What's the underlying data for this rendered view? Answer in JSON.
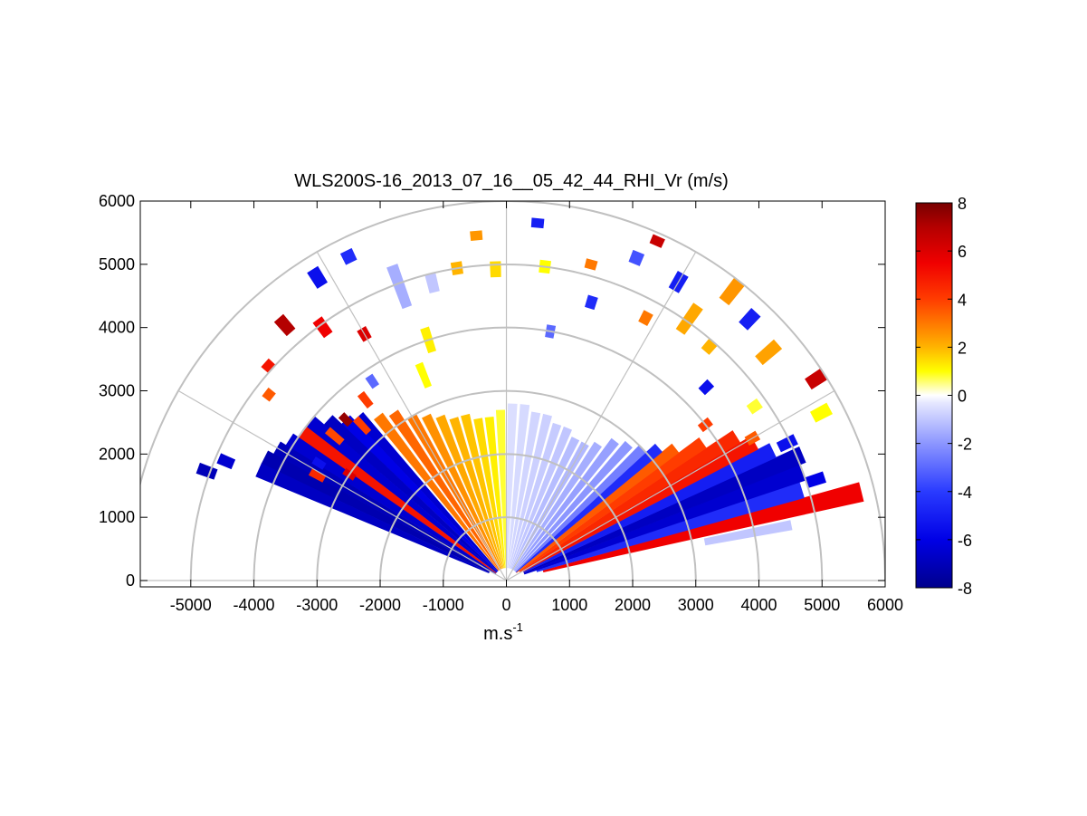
{
  "chart_data": {
    "type": "heatmap",
    "subtype": "polar-rhi-sector",
    "title": "WLS200S-16_2013_07_16__05_42_44_RHI_Vr (m/s)",
    "xlabel": "m.s",
    "xlabel_superscript": "-1",
    "ylabel": "",
    "xlim": [
      -5800,
      6000
    ],
    "ylim": [
      -100,
      6000
    ],
    "xticks": [
      "-5000",
      "-4000",
      "-3000",
      "-2000",
      "-1000",
      "0",
      "1000",
      "2000",
      "3000",
      "4000",
      "5000",
      "6000"
    ],
    "yticks": [
      "0",
      "1000",
      "2000",
      "3000",
      "4000",
      "5000",
      "6000"
    ],
    "grid": "polar",
    "range_rings": [
      1000,
      2000,
      3000,
      4000,
      5000,
      6000
    ],
    "spokes_deg": [
      30,
      60,
      90,
      120,
      150
    ],
    "colorbar": {
      "placement": "right",
      "min": -8,
      "max": 8,
      "ticks": [
        "8",
        "6",
        "4",
        "2",
        "0",
        "-2",
        "-4",
        "-6",
        "-8"
      ],
      "stops": [
        {
          "v": -8,
          "color": "#00008c"
        },
        {
          "v": -6,
          "color": "#0000e6"
        },
        {
          "v": -4,
          "color": "#2a3bff"
        },
        {
          "v": -2,
          "color": "#8c96ff"
        },
        {
          "v": -0.3,
          "color": "#e6e8ff"
        },
        {
          "v": 0,
          "color": "#ffffff"
        },
        {
          "v": 0.3,
          "color": "#ffffb4"
        },
        {
          "v": 1,
          "color": "#ffff00"
        },
        {
          "v": 2,
          "color": "#ffb400"
        },
        {
          "v": 3,
          "color": "#ff7800"
        },
        {
          "v": 4,
          "color": "#ff3c00"
        },
        {
          "v": 5.5,
          "color": "#f00000"
        },
        {
          "v": 7,
          "color": "#b40000"
        },
        {
          "v": 8,
          "color": "#780000"
        }
      ]
    },
    "beams": [
      {
        "az": 14,
        "r0": 600,
        "r1": 5800,
        "vr": 5.5
      },
      {
        "az": 17,
        "r0": 500,
        "r1": 4900,
        "vr": -4.5
      },
      {
        "az": 20,
        "r0": 300,
        "r1": 5000,
        "vr": -6.5
      },
      {
        "az": 23,
        "r0": 300,
        "r1": 5100,
        "vr": -6.8
      },
      {
        "az": 26,
        "r0": 300,
        "r1": 4700,
        "vr": -5.0
      },
      {
        "az": 29,
        "r0": 300,
        "r1": 4500,
        "vr": 5.0
      },
      {
        "az": 32,
        "r0": 250,
        "r1": 4300,
        "vr": 4.5
      },
      {
        "az": 35,
        "r0": 250,
        "r1": 3800,
        "vr": 4.0
      },
      {
        "az": 38,
        "r0": 200,
        "r1": 3400,
        "vr": 3.5
      },
      {
        "az": 41,
        "r0": 200,
        "r1": 3200,
        "vr": -4.5
      },
      {
        "az": 44,
        "r0": 200,
        "r1": 3000,
        "vr": -2.5
      },
      {
        "az": 48,
        "r0": 200,
        "r1": 2900,
        "vr": -2.0
      },
      {
        "az": 52,
        "r0": 200,
        "r1": 2800,
        "vr": -1.8
      },
      {
        "az": 56,
        "r0": 200,
        "r1": 2600,
        "vr": -1.5
      },
      {
        "az": 60,
        "r0": 200,
        "r1": 2500,
        "vr": -1.3
      },
      {
        "az": 64,
        "r0": 200,
        "r1": 2500,
        "vr": -1.2
      },
      {
        "az": 68,
        "r0": 200,
        "r1": 2600,
        "vr": -1.0
      },
      {
        "az": 72,
        "r0": 200,
        "r1": 2600,
        "vr": -0.9
      },
      {
        "az": 76,
        "r0": 200,
        "r1": 2700,
        "vr": -0.8
      },
      {
        "az": 80,
        "r0": 200,
        "r1": 2700,
        "vr": -0.7
      },
      {
        "az": 84,
        "r0": 200,
        "r1": 2800,
        "vr": -0.6
      },
      {
        "az": 88,
        "r0": 200,
        "r1": 2800,
        "vr": -0.5
      },
      {
        "az": 92,
        "r0": 200,
        "r1": 2700,
        "vr": 0.8
      },
      {
        "az": 96,
        "r0": 200,
        "r1": 2600,
        "vr": 1.2
      },
      {
        "az": 100,
        "r0": 200,
        "r1": 2600,
        "vr": 1.5
      },
      {
        "az": 104,
        "r0": 200,
        "r1": 2700,
        "vr": 1.8
      },
      {
        "az": 108,
        "r0": 200,
        "r1": 2700,
        "vr": 2.0
      },
      {
        "az": 112,
        "r0": 200,
        "r1": 2800,
        "vr": 2.2
      },
      {
        "az": 116,
        "r0": 200,
        "r1": 2900,
        "vr": 2.6
      },
      {
        "az": 120,
        "r0": 200,
        "r1": 3000,
        "vr": 3.0
      },
      {
        "az": 124,
        "r0": 200,
        "r1": 3200,
        "vr": 3.3
      },
      {
        "az": 128,
        "r0": 200,
        "r1": 3300,
        "vr": 3.0
      },
      {
        "az": 132,
        "r0": 200,
        "r1": 3500,
        "vr": -6.5
      },
      {
        "az": 135,
        "r0": 200,
        "r1": 3600,
        "vr": -6.0
      },
      {
        "az": 138,
        "r0": 200,
        "r1": 3800,
        "vr": -6.8
      },
      {
        "az": 141,
        "r0": 200,
        "r1": 4000,
        "vr": -6.5
      },
      {
        "az": 144,
        "r0": 200,
        "r1": 4000,
        "vr": 5.0
      },
      {
        "az": 147,
        "r0": 200,
        "r1": 4100,
        "vr": -6.5
      },
      {
        "az": 150,
        "r0": 200,
        "r1": 4200,
        "vr": -7.0
      },
      {
        "az": 153,
        "r0": 300,
        "r1": 4300,
        "vr": -7.2
      },
      {
        "az": 156,
        "r0": 300,
        "r1": 4300,
        "vr": -6.8
      }
    ],
    "patches": [
      {
        "az": 160,
        "r0": 4900,
        "r1": 5200,
        "vr": -7.0
      },
      {
        "az": 157,
        "r0": 4700,
        "r1": 4950,
        "vr": -6.5
      },
      {
        "az": 151,
        "r0": 3300,
        "r1": 3550,
        "vr": 4.5
      },
      {
        "az": 148,
        "r0": 3400,
        "r1": 3600,
        "vr": -5.5
      },
      {
        "az": 146,
        "r0": 2900,
        "r1": 3100,
        "vr": 6.0
      },
      {
        "az": 142,
        "r0": 4700,
        "r1": 4850,
        "vr": 3.5
      },
      {
        "az": 140,
        "r0": 3400,
        "r1": 3700,
        "vr": 3.8
      },
      {
        "az": 138,
        "r0": 5000,
        "r1": 5150,
        "vr": 5.0
      },
      {
        "az": 135,
        "r0": 3500,
        "r1": 3700,
        "vr": 7.5
      },
      {
        "az": 133,
        "r0": 3200,
        "r1": 3500,
        "vr": 4.0
      },
      {
        "az": 131,
        "r0": 5200,
        "r1": 5500,
        "vr": 7.0
      },
      {
        "az": 128,
        "r0": 3500,
        "r1": 3750,
        "vr": 4.0
      },
      {
        "az": 126,
        "r0": 4800,
        "r1": 5100,
        "vr": 5.5
      },
      {
        "az": 124,
        "r0": 3700,
        "r1": 3900,
        "vr": -3.0
      },
      {
        "az": 122,
        "r0": 5500,
        "r1": 5800,
        "vr": -5.5
      },
      {
        "az": 120,
        "r0": 4400,
        "r1": 4600,
        "vr": 6.0
      },
      {
        "az": 116,
        "r0": 5600,
        "r1": 5800,
        "vr": -4.5
      },
      {
        "az": 112,
        "r0": 3300,
        "r1": 3700,
        "vr": 1.0
      },
      {
        "az": 110,
        "r0": 4600,
        "r1": 5300,
        "vr": -1.5
      },
      {
        "az": 108,
        "r0": 3800,
        "r1": 4200,
        "vr": 1.2
      },
      {
        "az": 104,
        "r0": 4700,
        "r1": 5000,
        "vr": -1.0
      },
      {
        "az": 99,
        "r0": 4900,
        "r1": 5100,
        "vr": 2.0
      },
      {
        "az": 95,
        "r0": 5400,
        "r1": 5550,
        "vr": 2.5
      },
      {
        "az": 92,
        "r0": 4800,
        "r1": 5050,
        "vr": 1.5
      },
      {
        "az": 85,
        "r0": 5600,
        "r1": 5750,
        "vr": -5.0
      },
      {
        "az": 83,
        "r0": 4900,
        "r1": 5100,
        "vr": 1.0
      },
      {
        "az": 80,
        "r0": 3900,
        "r1": 4100,
        "vr": -3.0
      },
      {
        "az": 75,
        "r0": 5100,
        "r1": 5250,
        "vr": 3.0
      },
      {
        "az": 73,
        "r0": 4500,
        "r1": 4700,
        "vr": -4.5
      },
      {
        "az": 68,
        "r0": 5400,
        "r1": 5600,
        "vr": -3.5
      },
      {
        "az": 66,
        "r0": 5800,
        "r1": 5950,
        "vr": 6.5
      },
      {
        "az": 62,
        "r0": 4600,
        "r1": 4800,
        "vr": 3.0
      },
      {
        "az": 60,
        "r0": 5300,
        "r1": 5600,
        "vr": -5.0
      },
      {
        "az": 55,
        "r0": 4800,
        "r1": 5300,
        "vr": 2.2
      },
      {
        "az": 52,
        "r0": 5600,
        "r1": 6000,
        "vr": 2.5
      },
      {
        "az": 49,
        "r0": 4800,
        "r1": 5000,
        "vr": 2.0
      },
      {
        "az": 47,
        "r0": 5500,
        "r1": 5800,
        "vr": -5.0
      },
      {
        "az": 44,
        "r0": 4300,
        "r1": 4500,
        "vr": -5.5
      },
      {
        "az": 41,
        "r0": 5300,
        "r1": 5700,
        "vr": 2.3
      },
      {
        "az": 38,
        "r0": 3900,
        "r1": 4100,
        "vr": 4.0
      },
      {
        "az": 35,
        "r0": 4700,
        "r1": 4900,
        "vr": 0.8
      },
      {
        "az": 33,
        "r0": 5700,
        "r1": 6000,
        "vr": 6.5
      },
      {
        "az": 30,
        "r0": 4400,
        "r1": 4600,
        "vr": 3.5
      },
      {
        "az": 28,
        "r0": 5500,
        "r1": 5800,
        "vr": 1.0
      },
      {
        "az": 26,
        "r0": 4800,
        "r1": 5100,
        "vr": -5.5
      },
      {
        "az": 18,
        "r0": 5000,
        "r1": 5300,
        "vr": -6.0
      },
      {
        "az": 11,
        "r0": 3200,
        "r1": 4600,
        "vr": -1.0
      }
    ]
  }
}
